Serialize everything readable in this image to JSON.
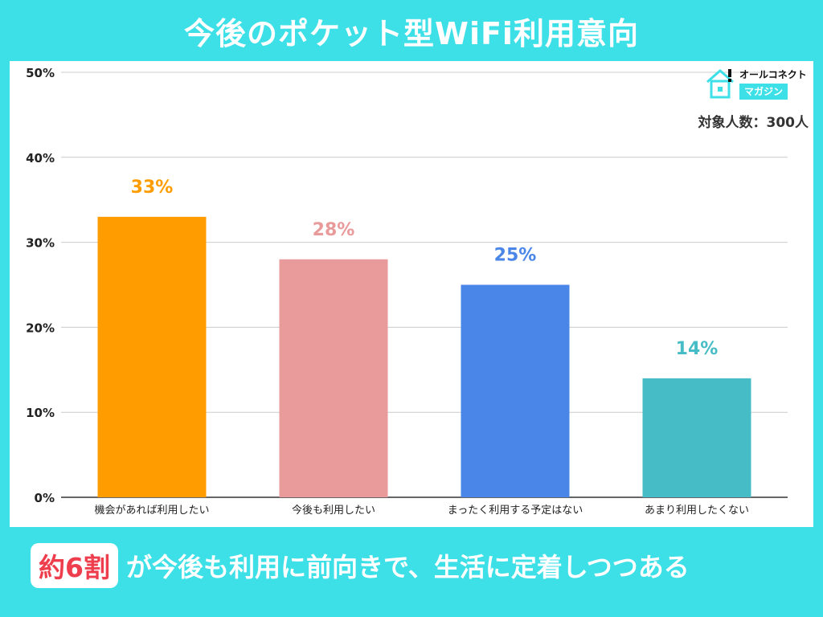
{
  "header": {
    "title": "今後のポケット型WiFi利用意向"
  },
  "brand": {
    "line1": "オールコネクト",
    "line2": "マガジン"
  },
  "sample_note": "対象人数：300人",
  "banner": {
    "highlight": "約6割",
    "text": "が今後も利用に前向きで、生活に定着しつつある"
  },
  "chart_data": {
    "type": "bar",
    "categories": [
      "機会があれば利用したい",
      "今後も利用したい",
      "まったく利用する予定はない",
      "あまり利用したくない"
    ],
    "values": [
      33,
      28,
      25,
      14
    ],
    "value_labels": [
      "33%",
      "28%",
      "25%",
      "14%"
    ],
    "colors": [
      "#ff9d00",
      "#e99a9a",
      "#4a86e8",
      "#46bdc6"
    ],
    "ylim": [
      0,
      50
    ],
    "yticks": [
      0,
      10,
      20,
      30,
      40,
      50
    ],
    "ytick_labels": [
      "0%",
      "10%",
      "20%",
      "30%",
      "40%",
      "50%"
    ],
    "grid": true
  }
}
